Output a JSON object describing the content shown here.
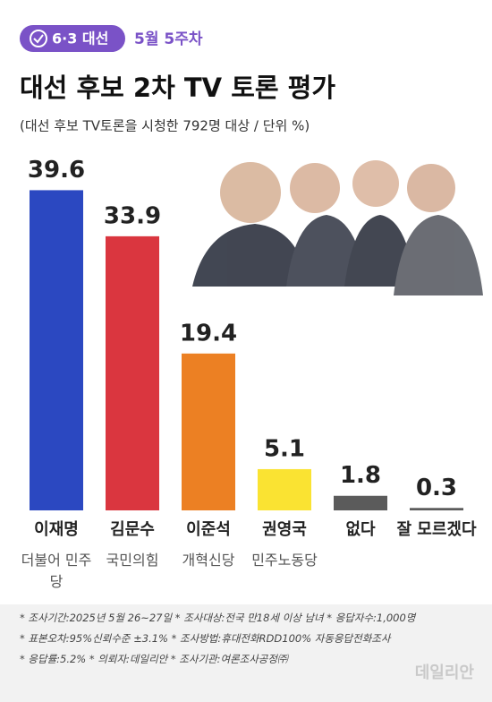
{
  "chart_data": {
    "type": "bar",
    "badge": "6·3 대선",
    "week": "5월 5주차",
    "title": "대선 후보 2차 TV 토론 평가",
    "subtitle": "(대선 후보 TV토론을 시청한 792명 대상 / 단위 %)",
    "categories": [
      "이재명",
      "김문수",
      "이준석",
      "권영국",
      "없다",
      "잘 모르겠다"
    ],
    "parties": [
      "더불어 민주당",
      "국민의힘",
      "개혁신당",
      "민주노동당",
      null,
      null
    ],
    "values": [
      39.6,
      33.9,
      19.4,
      5.1,
      1.8,
      0.3
    ],
    "colors": [
      "#2b48c1",
      "#da363f",
      "#ec8023",
      "#fae332",
      "#5b5b5b",
      "#5b5b5b"
    ],
    "notes": [
      "* 조사기간:2025년 5월 26~27일  * 조사대상:전국 만18세 이상 남녀  * 응답자수:1,000명",
      "* 표본오차:95%신뢰수준 ±3.1%  * 조사방법:휴대전화RDD100% 자동응답전화조사",
      "* 응답률:5.2%  * 의뢰자:데일리안  * 조사기관:여론조사공정㈜"
    ],
    "source": "데일리안"
  }
}
